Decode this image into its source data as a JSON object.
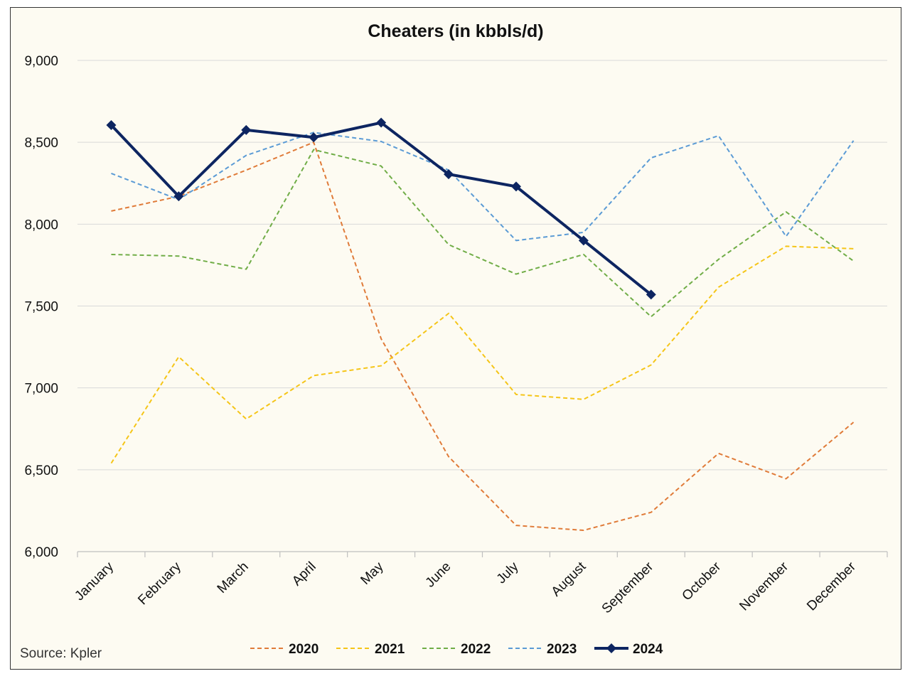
{
  "chart_data": {
    "type": "line",
    "title": "Cheaters (in kbbls/d)",
    "xlabel": "",
    "ylabel": "",
    "ylim": [
      6000,
      9000
    ],
    "ytick_step": 500,
    "ytick_labels": [
      "6,000",
      "6,500",
      "7,000",
      "7,500",
      "8,000",
      "8,500",
      "9,000"
    ],
    "grid": true,
    "legend_position": "bottom",
    "categories": [
      "January",
      "February",
      "March",
      "April",
      "May",
      "June",
      "July",
      "August",
      "September",
      "October",
      "November",
      "December"
    ],
    "series": [
      {
        "name": "2020",
        "color": "#e07b39",
        "style": "dashed",
        "marker": "none",
        "values": [
          8080,
          8170,
          8330,
          8500,
          7300,
          6580,
          6160,
          6130,
          6240,
          6600,
          6445,
          6790
        ]
      },
      {
        "name": "2021",
        "color": "#f5c518",
        "style": "dashed",
        "marker": "none",
        "values": [
          6540,
          7190,
          6810,
          7075,
          7135,
          7455,
          6960,
          6930,
          7140,
          7615,
          7865,
          7850
        ]
      },
      {
        "name": "2022",
        "color": "#70ad47",
        "style": "dashed",
        "marker": "none",
        "values": [
          7815,
          7805,
          7725,
          8455,
          8355,
          7875,
          7695,
          7815,
          7435,
          7785,
          8075,
          7775
        ]
      },
      {
        "name": "2023",
        "color": "#5b9bd5",
        "style": "dashed",
        "marker": "none",
        "values": [
          8310,
          8150,
          8420,
          8560,
          8505,
          8330,
          7900,
          7950,
          8405,
          8540,
          7925,
          8510
        ]
      },
      {
        "name": "2024",
        "color": "#0d2561",
        "style": "solid",
        "marker": "diamond",
        "values": [
          8605,
          8170,
          8575,
          8530,
          8620,
          8305,
          8230,
          7900,
          7570,
          null,
          null,
          null
        ]
      }
    ]
  },
  "source": "Source: Kpler"
}
